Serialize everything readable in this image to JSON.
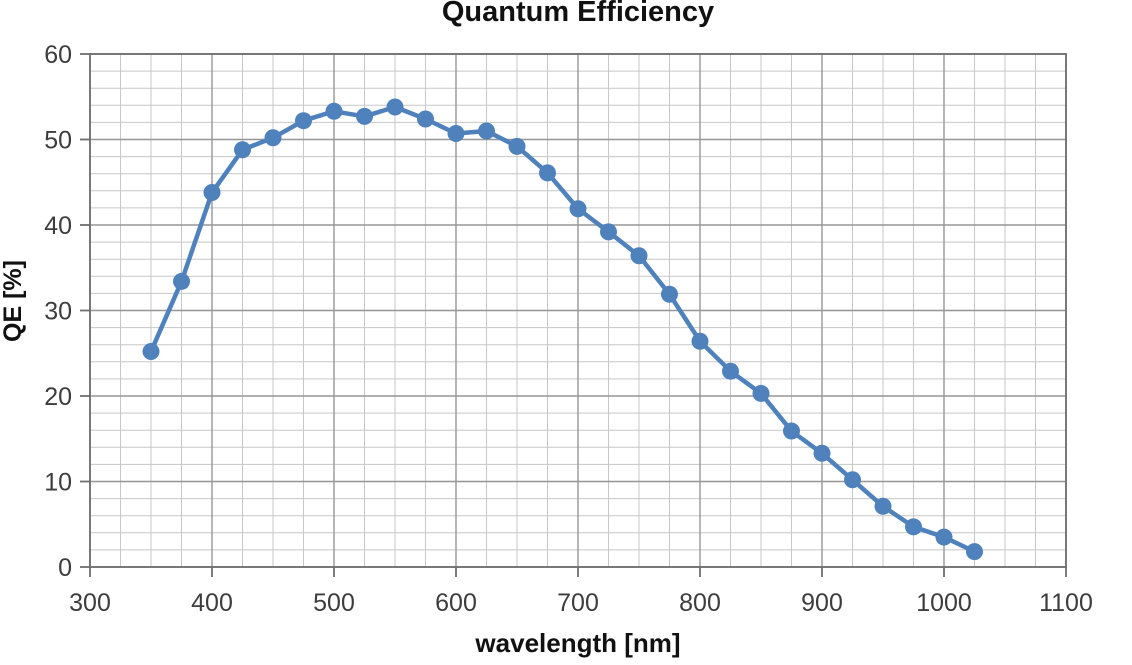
{
  "chart_data": {
    "type": "line",
    "title": "Quantum Efficiency",
    "xlabel": "wavelength [nm]",
    "ylabel": "QE [%]",
    "x": [
      350,
      375,
      400,
      425,
      450,
      475,
      500,
      525,
      550,
      575,
      600,
      625,
      650,
      675,
      700,
      725,
      750,
      775,
      800,
      825,
      850,
      875,
      900,
      925,
      950,
      975,
      1000,
      1025
    ],
    "values": [
      25.2,
      33.4,
      43.8,
      48.8,
      50.2,
      52.2,
      53.3,
      52.7,
      53.8,
      52.4,
      50.7,
      51.0,
      49.2,
      46.1,
      41.9,
      39.2,
      36.4,
      31.9,
      26.4,
      22.9,
      20.3,
      15.9,
      13.3,
      10.2,
      7.1,
      4.7,
      3.5,
      1.8
    ],
    "xlim": [
      300,
      1100
    ],
    "ylim": [
      0,
      60
    ],
    "x_major_ticks": [
      300,
      400,
      500,
      600,
      700,
      800,
      900,
      1000,
      1100
    ],
    "y_major_ticks": [
      0,
      10,
      20,
      30,
      40,
      50,
      60
    ],
    "x_minor_step": 25,
    "y_minor_step": 2,
    "grid": "both",
    "legend_position": "none",
    "line_color": "#4F81BD",
    "marker": "circle",
    "grid_minor_color": "#C7C7C7",
    "grid_major_color": "#969696",
    "axis_color": "#6E6E6E",
    "tick_label_color": "#3D3D3D"
  }
}
